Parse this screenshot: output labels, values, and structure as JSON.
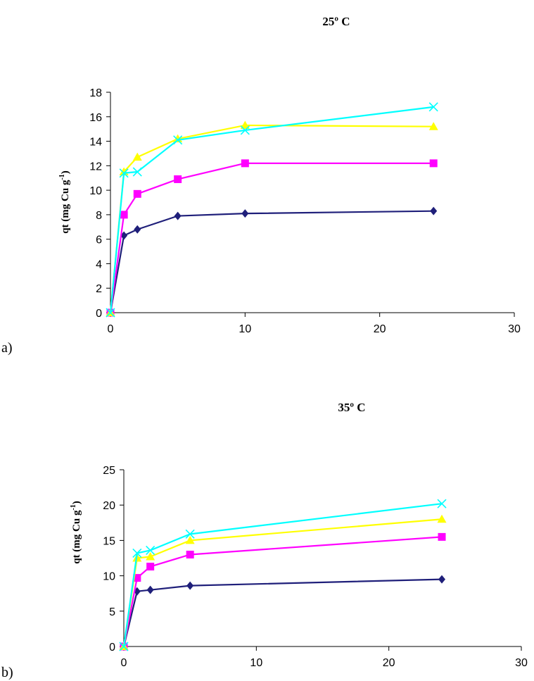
{
  "chart_data": [
    {
      "panel_label": "a)",
      "type": "line",
      "title": "25º C",
      "xlabel": "",
      "ylabel": "qt (mg Cu g",
      "ylabel_sup": "-1",
      "ylabel_close": ")",
      "xlim": [
        0,
        30
      ],
      "ylim": [
        0,
        18
      ],
      "x_ticks": [
        0,
        10,
        20,
        30
      ],
      "y_ticks": [
        0,
        2,
        4,
        6,
        8,
        10,
        12,
        14,
        16,
        18
      ],
      "grid": false,
      "series": [
        {
          "color": "#1f1f7a",
          "marker": "diamond",
          "x": [
            0,
            1,
            2,
            5,
            10,
            24
          ],
          "y": [
            0,
            6.3,
            6.8,
            7.9,
            8.1,
            8.3
          ]
        },
        {
          "color": "#ff00ff",
          "marker": "square",
          "x": [
            0,
            1,
            2,
            5,
            10,
            24
          ],
          "y": [
            0,
            8.0,
            9.7,
            10.9,
            12.2,
            12.2
          ]
        },
        {
          "color": "#ffff00",
          "marker": "triangle",
          "x": [
            0,
            1,
            2,
            5,
            10,
            24
          ],
          "y": [
            0,
            11.5,
            12.7,
            14.2,
            15.3,
            15.2
          ]
        },
        {
          "color": "#00ffff",
          "marker": "x",
          "x": [
            0,
            1,
            2,
            5,
            10,
            24
          ],
          "y": [
            0,
            11.4,
            11.5,
            14.1,
            14.9,
            16.8
          ]
        }
      ]
    },
    {
      "panel_label": "b)",
      "type": "line",
      "title": "35º C",
      "xlabel": "",
      "ylabel": "qt (mg Cu g",
      "ylabel_sup": "-1",
      "ylabel_close": ")",
      "xlim": [
        0,
        30
      ],
      "ylim": [
        0,
        25
      ],
      "x_ticks": [
        0,
        10,
        20,
        30
      ],
      "y_ticks": [
        0,
        5,
        10,
        15,
        20,
        25
      ],
      "grid": false,
      "series": [
        {
          "color": "#1f1f7a",
          "marker": "diamond",
          "x": [
            0,
            1,
            2,
            5,
            24
          ],
          "y": [
            0,
            7.8,
            8.0,
            8.6,
            9.5
          ]
        },
        {
          "color": "#ff00ff",
          "marker": "square",
          "x": [
            0,
            1,
            2,
            5,
            24
          ],
          "y": [
            0,
            9.7,
            11.3,
            13.0,
            15.5
          ]
        },
        {
          "color": "#ffff00",
          "marker": "triangle",
          "x": [
            0,
            1,
            2,
            5,
            24
          ],
          "y": [
            0,
            12.5,
            12.7,
            15.0,
            18.0
          ]
        },
        {
          "color": "#00ffff",
          "marker": "x",
          "x": [
            0,
            1,
            2,
            5,
            24
          ],
          "y": [
            0,
            13.2,
            13.6,
            15.9,
            20.2
          ]
        }
      ]
    }
  ]
}
